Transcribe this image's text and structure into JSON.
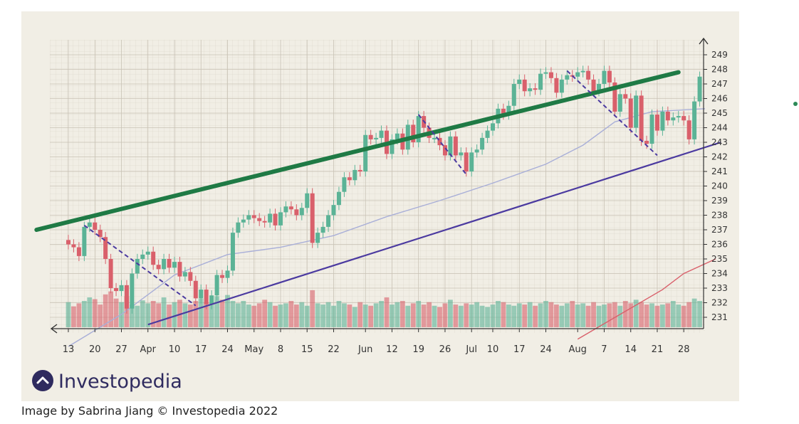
{
  "caption": "Image by Sabrina Jiang © Investopedia 2022",
  "logo_text": "Investopedia",
  "chart_data": {
    "type": "candlestick",
    "title": "",
    "ylim": [
      230.5,
      249.5
    ],
    "yticks": [
      231,
      232,
      233,
      234,
      235,
      236,
      237,
      238,
      239,
      240,
      241,
      242,
      243,
      244,
      245,
      246,
      247,
      248,
      249
    ],
    "xticks": [
      {
        "label": "13",
        "i": 0
      },
      {
        "label": "20",
        "i": 5
      },
      {
        "label": "27",
        "i": 10
      },
      {
        "label": "Apr",
        "i": 15
      },
      {
        "label": "10",
        "i": 20
      },
      {
        "label": "17",
        "i": 25
      },
      {
        "label": "24",
        "i": 30
      },
      {
        "label": "May",
        "i": 35
      },
      {
        "label": "8",
        "i": 40
      },
      {
        "label": "15",
        "i": 45
      },
      {
        "label": "22",
        "i": 50
      },
      {
        "label": "Jun",
        "i": 56
      },
      {
        "label": "12",
        "i": 61
      },
      {
        "label": "19",
        "i": 66
      },
      {
        "label": "26",
        "i": 71
      },
      {
        "label": "Jul",
        "i": 76
      },
      {
        "label": "10",
        "i": 80
      },
      {
        "label": "17",
        "i": 85
      },
      {
        "label": "24",
        "i": 90
      },
      {
        "label": "Aug",
        "i": 96
      },
      {
        "label": "7",
        "i": 101
      },
      {
        "label": "14",
        "i": 106
      },
      {
        "label": "21",
        "i": 111
      },
      {
        "label": "28",
        "i": 116
      }
    ],
    "closes": [
      236.0,
      235.8,
      235.2,
      237.2,
      237.5,
      237.0,
      236.5,
      235.0,
      233.0,
      232.8,
      233.2,
      231.6,
      234.0,
      235.0,
      235.3,
      235.5,
      234.6,
      234.3,
      235.0,
      234.4,
      234.8,
      233.8,
      234.1,
      233.5,
      232.3,
      232.9,
      231.9,
      232.5,
      233.9,
      233.7,
      234.2,
      236.8,
      237.5,
      237.7,
      238.0,
      237.8,
      237.6,
      237.5,
      238.1,
      237.3,
      238.2,
      238.6,
      238.4,
      238.0,
      238.5,
      239.5,
      236.1,
      236.8,
      237.2,
      238.0,
      238.7,
      239.6,
      240.6,
      240.4,
      241.1,
      241.0,
      243.5,
      243.2,
      243.3,
      243.8,
      242.2,
      243.2,
      243.6,
      242.5,
      244.2,
      243.0,
      244.8,
      244.0,
      243.3,
      243.3,
      242.8,
      242.1,
      243.4,
      242.1,
      242.3,
      241.0,
      242.3,
      242.5,
      243.3,
      243.8,
      244.3,
      245.3,
      244.9,
      245.5,
      247.0,
      247.3,
      246.5,
      246.7,
      246.6,
      247.7,
      247.8,
      247.4,
      246.4,
      247.3,
      247.6,
      247.5,
      247.8,
      247.9,
      247.3,
      246.5,
      247.0,
      247.9,
      247.1,
      245.1,
      246.3,
      246.0,
      244.0,
      246.2,
      243.1,
      242.9,
      244.9,
      243.8,
      245.1,
      244.5,
      244.7,
      244.8,
      244.5,
      243.2,
      245.8,
      247.5
    ],
    "ma_short": [
      [
        0,
        229.0
      ],
      [
        10,
        231.2
      ],
      [
        20,
        233.9
      ],
      [
        30,
        235.3
      ],
      [
        40,
        235.8
      ],
      [
        50,
        236.6
      ],
      [
        60,
        237.9
      ],
      [
        70,
        239.0
      ],
      [
        80,
        240.2
      ],
      [
        90,
        241.5
      ],
      [
        97,
        242.8
      ],
      [
        103,
        244.4
      ],
      [
        110,
        245.1
      ],
      [
        120,
        245.3
      ]
    ],
    "ma_long": [
      [
        96,
        229.5
      ],
      [
        104,
        231.2
      ],
      [
        112,
        232.9
      ],
      [
        116,
        234.0
      ],
      [
        122,
        235.0
      ]
    ],
    "volume_ylim": [
      0,
      100
    ],
    "volumes": [
      42,
      35,
      40,
      44,
      50,
      47,
      38,
      55,
      60,
      48,
      42,
      52,
      38,
      36,
      45,
      40,
      44,
      40,
      50,
      38,
      42,
      46,
      40,
      38,
      44,
      48,
      42,
      40,
      52,
      46,
      54,
      44,
      40,
      44,
      38,
      36,
      40,
      46,
      42,
      36,
      38,
      40,
      44,
      38,
      42,
      36,
      62,
      40,
      38,
      42,
      36,
      44,
      40,
      38,
      34,
      42,
      38,
      36,
      40,
      44,
      50,
      38,
      42,
      44,
      36,
      40,
      44,
      38,
      42,
      36,
      34,
      40,
      46,
      38,
      36,
      40,
      38,
      42,
      36,
      34,
      38,
      44,
      42,
      38,
      36,
      40,
      38,
      42,
      36,
      40,
      44,
      42,
      38,
      36,
      40,
      44,
      38,
      40,
      36,
      42,
      36,
      38,
      40,
      42,
      36,
      44,
      40,
      46,
      42,
      38,
      40,
      36,
      38,
      40,
      44,
      38,
      36,
      42,
      48,
      44
    ],
    "annotations": {
      "upper_channel": {
        "from": [
          -6.0,
          237.0
        ],
        "to": [
          115.0,
          247.8
        ],
        "color": "#1f7a45"
      },
      "lower_channel": {
        "from": [
          15.0,
          230.5
        ],
        "to": [
          123.0,
          243.0
        ],
        "color": "#4b3aa0"
      },
      "pullbacks": [
        {
          "from": [
            3,
            237.3
          ],
          "to": [
            24,
            231.8
          ]
        },
        {
          "from": [
            66,
            244.9
          ],
          "to": [
            75,
            240.8
          ]
        },
        {
          "from": [
            94,
            247.9
          ],
          "to": [
            111,
            242.1
          ]
        }
      ],
      "dashed_color": "#4b3aa0"
    },
    "up_color": "#5bb396",
    "down_color": "#d9606b"
  }
}
